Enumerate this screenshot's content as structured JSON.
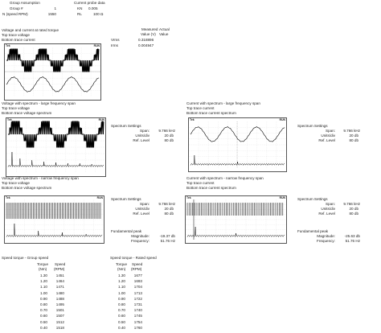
{
  "top": {
    "group_assumption": "Group Assumption",
    "group_num_label": "Group #",
    "group_num_value": "1",
    "speed_label": "N (speed RPM)",
    "speed_value": "1550",
    "current_probe_label": "Current probe data",
    "kn_label": "KN",
    "kn_value": "0.005",
    "rl_label": "RL",
    "rl_value": "100 Ω"
  },
  "section1": {
    "title": "Voltage and current at rated torque",
    "top_trace": "Top trace voltage",
    "bottom_trace": "Bottom trace current",
    "measured_label": "Measured",
    "actual_label": "Actual",
    "value_v_label": "Value (V)",
    "value_label": "Value",
    "vrms_label": "Vrms",
    "vrms_value": "0.318896",
    "irms_label": "Irms",
    "irms_value": "0.004947"
  },
  "section2": {
    "title": "Voltage with spectrum - large frequency span",
    "top_trace": "Top trace voltage",
    "bottom_trace": "Bottom trace voltage spectrum"
  },
  "section3": {
    "title": "Current with spectrum - large frequency span",
    "top_trace": "Top trace current",
    "bottom_trace": "Bottom trace current spectrum"
  },
  "section4": {
    "title": "Voltage with spectrum - narrow frequency span",
    "top_trace": "Top trace voltage",
    "bottom_trace": "Bottom trace voltage spectrum"
  },
  "section5": {
    "title": "Current with spectrum - narrow frequency span",
    "top_trace": "Top trace current",
    "bottom_trace": "Bottom trace current spectrum"
  },
  "spectrum_settings_large_v": {
    "title": "Spectrum Settings",
    "span_label": "Span:",
    "span_value": "9.766 kHz",
    "units_label": "Units/div",
    "units_value": "20 db",
    "ref_label": "Ref. Level",
    "ref_value": "80 db"
  },
  "spectrum_settings_large_i": {
    "title": "Spectrum Settings",
    "span_label": "Span:",
    "span_value": "9.766 kHz",
    "units_label": "Units/div",
    "units_value": "20 db",
    "ref_label": "Ref. Level",
    "ref_value": "80 db"
  },
  "spectrum_settings_narrow_v": {
    "title": "Spectrum Settings",
    "span_label": "Span:",
    "span_value": "9.766 kHz",
    "units_label": "Units/div",
    "units_value": "20 db",
    "ref_label": "Ref. Level",
    "ref_value": "80 db",
    "peak_title": "Fundamental peak",
    "mag_label": "Magnitude:",
    "mag_value": "-19.37 db",
    "freq_label": "Frequency:",
    "freq_value": "51.76 Hz"
  },
  "spectrum_settings_narrow_i": {
    "title": "Spectrum Settings",
    "span_label": "Span:",
    "span_value": "9.766 kHz",
    "units_label": "Units/div",
    "units_value": "20 db",
    "ref_label": "Ref. Level",
    "ref_value": "80 db",
    "peak_title": "Fundamental peak",
    "mag_label": "Magnitude:",
    "mag_value": "-25.63 db",
    "freq_label": "Frequency:",
    "freq_value": "51.76 Hz"
  },
  "scope_labels": {
    "tek": "Tek",
    "run": "RUN"
  },
  "group_speed": {
    "title": "Speed torque - Group speed",
    "col_torque": "Torque",
    "col_torque_unit": "(Nm)",
    "col_speed": "Speed",
    "col_speed_unit": "(RPM)",
    "rows": [
      [
        "1.30",
        "1451"
      ],
      [
        "1.20",
        "1464"
      ],
      [
        "1.10",
        "1471"
      ],
      [
        "1.00",
        "1480"
      ],
      [
        "0.90",
        "1488"
      ],
      [
        "0.80",
        "1495"
      ],
      [
        "0.70",
        "1501"
      ],
      [
        "0.60",
        "1507"
      ],
      [
        "0.50",
        "1512"
      ],
      [
        "0.40",
        "1518"
      ]
    ]
  },
  "rated_speed": {
    "title": "Speed torque - Rated speed",
    "col_torque": "Torque",
    "col_torque_unit": "(Nm)",
    "col_speed": "Speed",
    "col_speed_unit": "(RPM)",
    "rows": [
      [
        "1.30",
        "1677"
      ],
      [
        "1.20",
        "1693"
      ],
      [
        "1.10",
        "1704"
      ],
      [
        "1.00",
        "1713"
      ],
      [
        "0.90",
        "1722"
      ],
      [
        "0.80",
        "1731"
      ],
      [
        "0.70",
        "1740"
      ],
      [
        "0.60",
        "1745"
      ],
      [
        "0.50",
        "1754"
      ],
      [
        "0.40",
        "1760"
      ]
    ]
  }
}
